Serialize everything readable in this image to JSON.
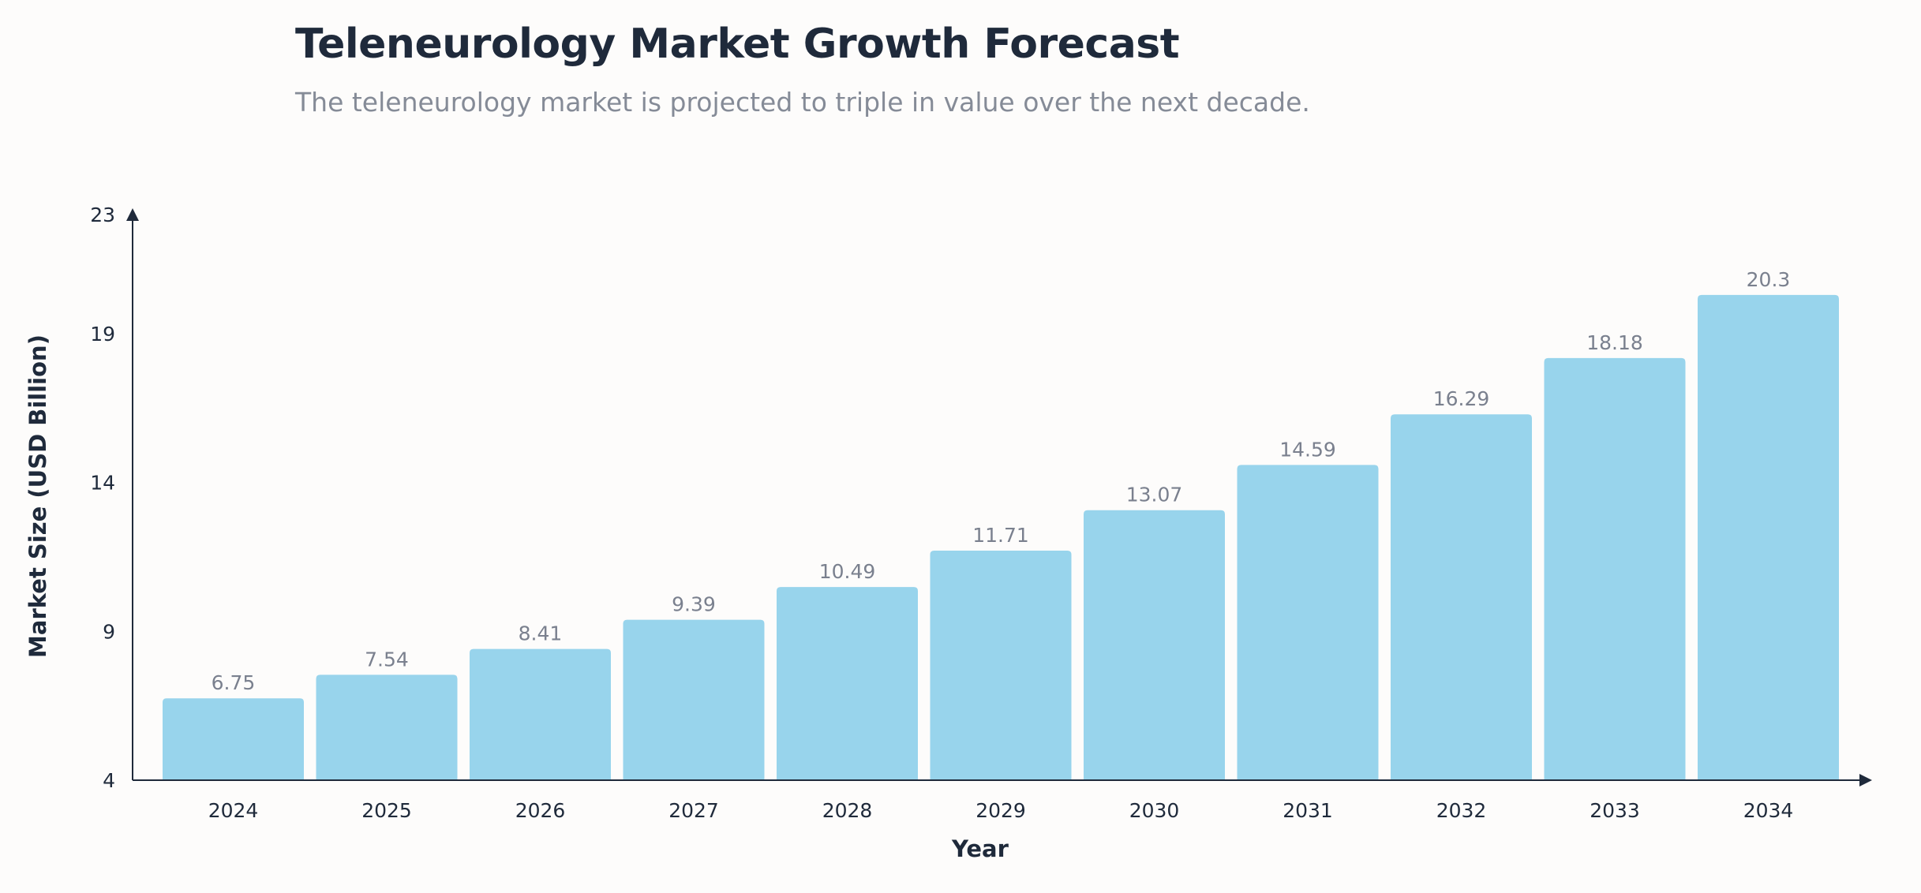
{
  "chart_data": {
    "type": "bar",
    "title": "Teleneurology Market Growth Forecast",
    "subtitle": "The teleneurology market is projected to triple in value over the next decade.",
    "xlabel": "Year",
    "ylabel": "Market Size (USD Billion)",
    "categories": [
      "2024",
      "2025",
      "2026",
      "2027",
      "2028",
      "2029",
      "2030",
      "2031",
      "2032",
      "2033",
      "2034"
    ],
    "values": [
      6.75,
      7.54,
      8.41,
      9.39,
      10.49,
      11.71,
      13.07,
      14.59,
      16.29,
      18.18,
      20.3
    ],
    "ylim": [
      4,
      23
    ],
    "yticks": [
      4,
      9,
      14,
      19,
      23
    ],
    "grid": false,
    "bar_color": "#98d4ec",
    "axis_color": "#1f2a3b",
    "label_color": "#7a808e"
  }
}
